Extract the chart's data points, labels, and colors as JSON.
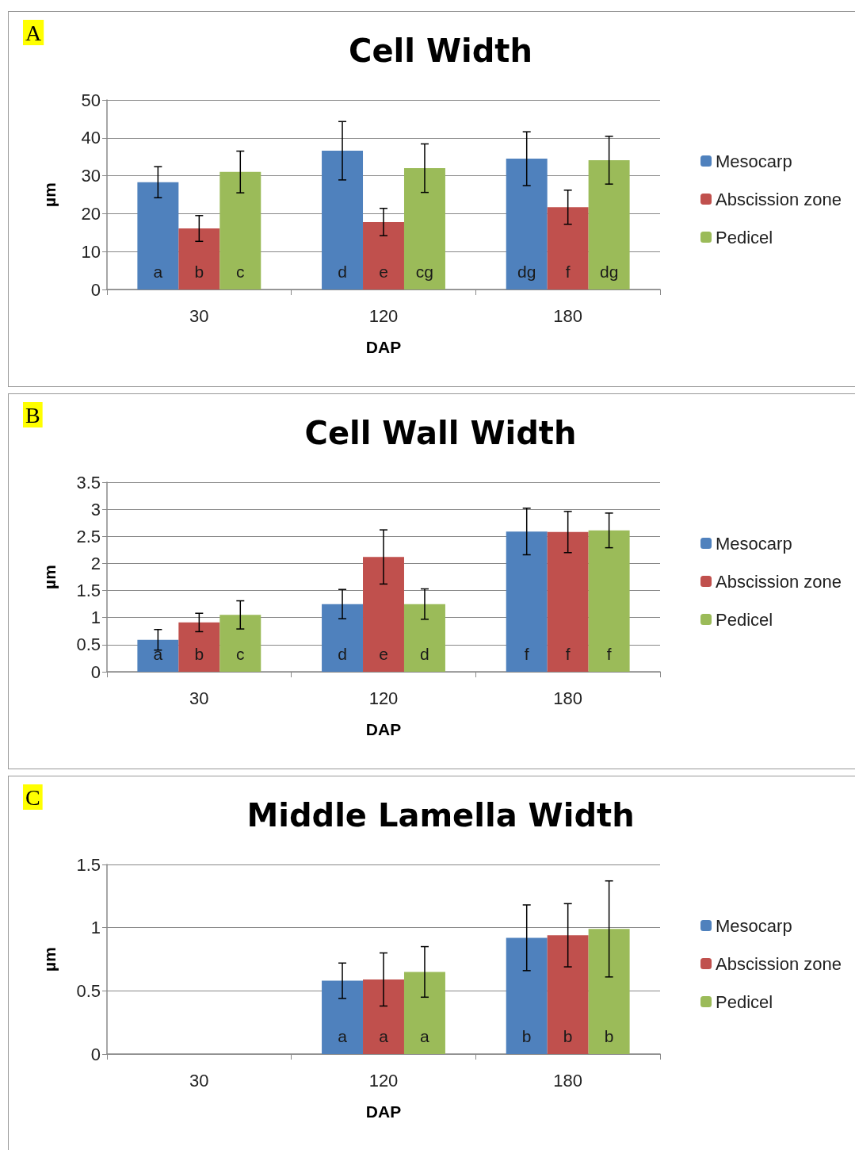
{
  "chart_data": [
    {
      "type": "bar",
      "title": "Cell Width",
      "xlabel": "DAP",
      "ylabel": "µm",
      "annotations": [
        "A"
      ],
      "categories": [
        "30",
        "120",
        "180"
      ],
      "ylim": [
        0,
        50
      ],
      "yticks": [
        0,
        10,
        20,
        30,
        40,
        50
      ],
      "grid": "y",
      "legend": "right",
      "series": [
        {
          "name": "Mesocarp",
          "color": "#4f81bd",
          "values": [
            28.3,
            36.6,
            34.5
          ],
          "errors": [
            4.1,
            7.7,
            7.1
          ],
          "value_labels": [
            "a",
            "d",
            "dg"
          ]
        },
        {
          "name": "Abscission zone",
          "color": "#c0504d",
          "values": [
            16.1,
            17.8,
            21.7
          ],
          "errors": [
            3.4,
            3.6,
            4.5
          ],
          "value_labels": [
            "b",
            "e",
            "f"
          ]
        },
        {
          "name": "Pedicel",
          "color": "#9bbb59",
          "values": [
            31.0,
            32.0,
            34.1
          ],
          "errors": [
            5.5,
            6.4,
            6.3
          ],
          "value_labels": [
            "c",
            "cg",
            "dg"
          ]
        }
      ]
    },
    {
      "type": "bar",
      "title": "Cell Wall Width",
      "xlabel": "DAP",
      "ylabel": "µm",
      "annotations": [
        "B"
      ],
      "categories": [
        "30",
        "120",
        "180"
      ],
      "ylim": [
        0,
        3.5
      ],
      "yticks": [
        0,
        0.5,
        1,
        1.5,
        2,
        2.5,
        3,
        3.5
      ],
      "grid": "y",
      "legend": "right",
      "series": [
        {
          "name": "Mesocarp",
          "color": "#4f81bd",
          "values": [
            0.59,
            1.25,
            2.59
          ],
          "errors": [
            0.19,
            0.27,
            0.43
          ],
          "value_labels": [
            "a",
            "d",
            "f"
          ]
        },
        {
          "name": "Abscission zone",
          "color": "#c0504d",
          "values": [
            0.91,
            2.12,
            2.58
          ],
          "errors": [
            0.17,
            0.5,
            0.38
          ],
          "value_labels": [
            "b",
            "e",
            "f"
          ]
        },
        {
          "name": "Pedicel",
          "color": "#9bbb59",
          "values": [
            1.05,
            1.25,
            2.61
          ],
          "errors": [
            0.26,
            0.28,
            0.32
          ],
          "value_labels": [
            "c",
            "d",
            "f"
          ]
        }
      ]
    },
    {
      "type": "bar",
      "title": "Middle Lamella Width",
      "xlabel": "DAP",
      "ylabel": "µm",
      "annotations": [
        "C"
      ],
      "categories": [
        "30",
        "120",
        "180"
      ],
      "ylim": [
        0,
        1.5
      ],
      "yticks": [
        0,
        0.5,
        1,
        1.5
      ],
      "grid": "y",
      "legend": "right",
      "series": [
        {
          "name": "Mesocarp",
          "color": "#4f81bd",
          "values": [
            null,
            0.58,
            0.92
          ],
          "errors": [
            null,
            0.14,
            0.26
          ],
          "value_labels": [
            null,
            "a",
            "b"
          ]
        },
        {
          "name": "Abscission zone",
          "color": "#c0504d",
          "values": [
            null,
            0.59,
            0.94
          ],
          "errors": [
            null,
            0.21,
            0.25
          ],
          "value_labels": [
            null,
            "a",
            "b"
          ]
        },
        {
          "name": "Pedicel",
          "color": "#9bbb59",
          "values": [
            null,
            0.65,
            0.99
          ],
          "errors": [
            null,
            0.2,
            0.38
          ],
          "value_labels": [
            null,
            "a",
            "b"
          ]
        }
      ]
    }
  ]
}
